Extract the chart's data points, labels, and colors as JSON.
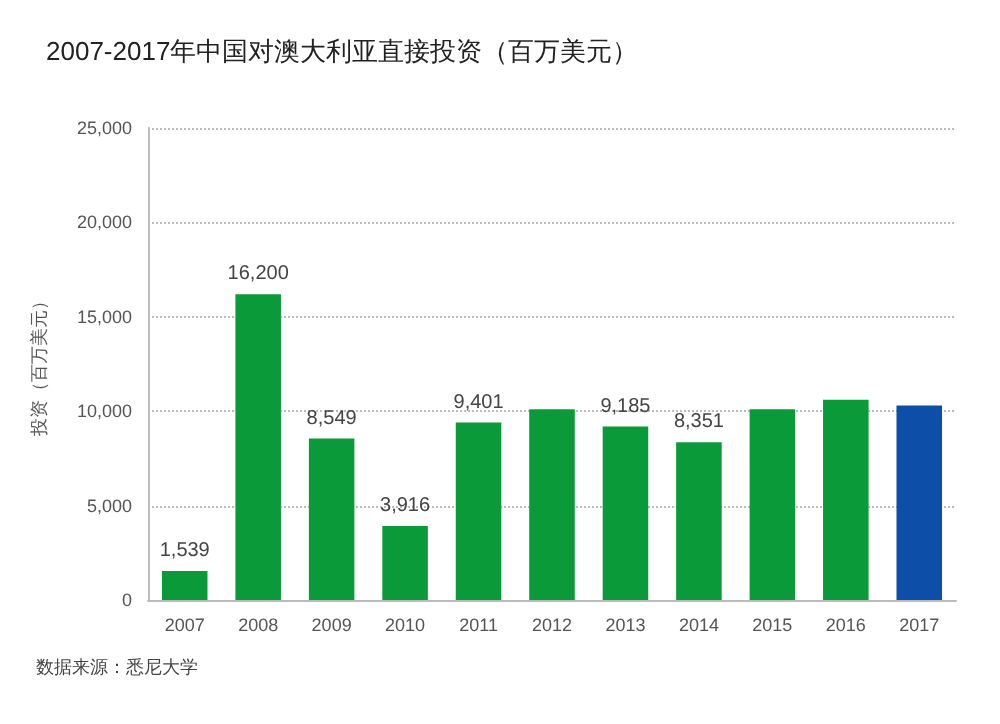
{
  "chart_data": {
    "type": "bar",
    "title": "2007-2017年中国对澳大利亚直接投资（百万美元）",
    "ylabel": "投资（百万美元）",
    "categories": [
      "2007",
      "2008",
      "2009",
      "2010",
      "2011",
      "2012",
      "2013",
      "2014",
      "2015",
      "2016",
      "2017"
    ],
    "values": [
      1539,
      16200,
      8549,
      3916,
      9401,
      10100,
      9185,
      8351,
      10100,
      10600,
      10300
    ],
    "value_labels": [
      "1,539",
      "16,200",
      "8,549",
      "3,916",
      "9,401",
      null,
      "9,185",
      "8,351",
      null,
      null,
      null
    ],
    "colors": [
      "#0a9a3a",
      "#0a9a3a",
      "#0a9a3a",
      "#0a9a3a",
      "#0a9a3a",
      "#0a9a3a",
      "#0a9a3a",
      "#0a9a3a",
      "#0a9a3a",
      "#0a9a3a",
      "#0d4fa8"
    ],
    "ylim": [
      0,
      25000
    ],
    "yticks": [
      0,
      {
        "value": 5000,
        "label": "5,000"
      },
      {
        "value": 10000,
        "label": "10,000"
      },
      {
        "value": 15000,
        "label": "15,000"
      },
      {
        "value": 20000,
        "label": "20,000"
      },
      {
        "value": 25000,
        "label": "25,000"
      }
    ],
    "grid": "y",
    "annotations": [
      "数据来源：悉尼大学"
    ]
  }
}
